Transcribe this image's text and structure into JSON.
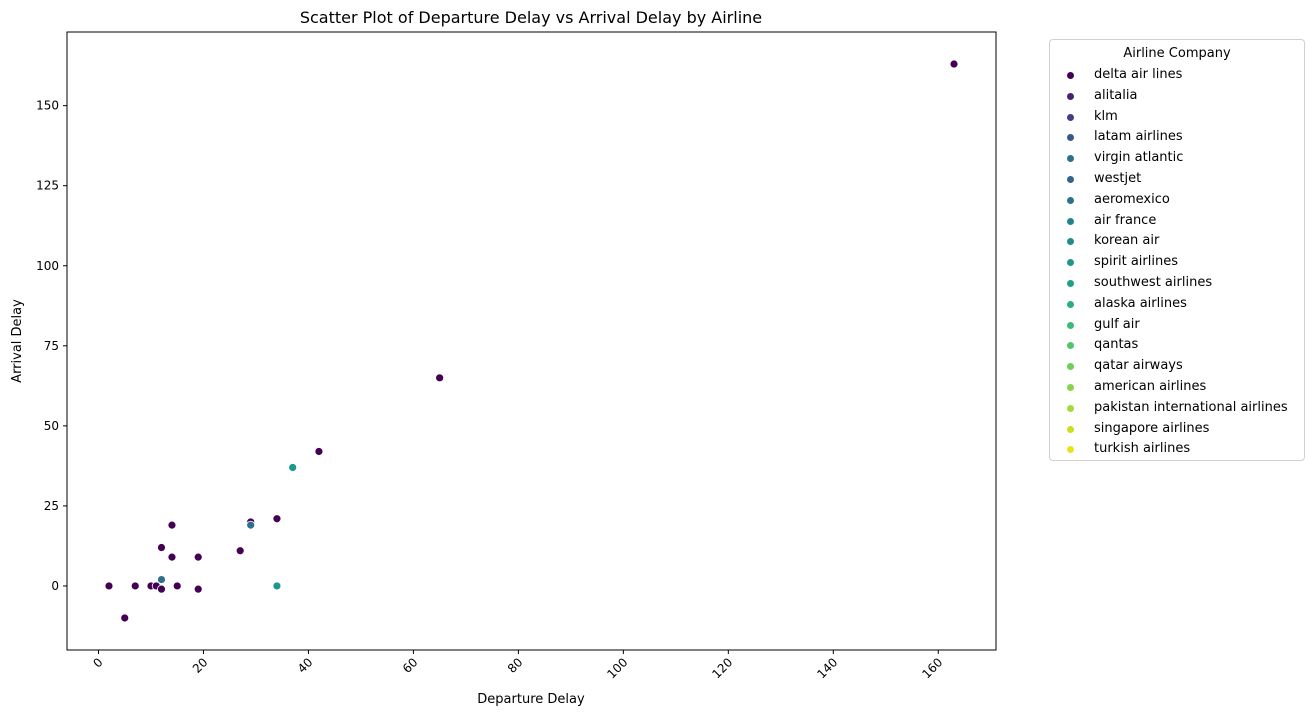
{
  "chart_data": {
    "type": "scatter",
    "title": "Scatter Plot of Departure Delay vs Arrival Delay by Airline",
    "xlabel": "Departure Delay",
    "ylabel": "Arrival Delay",
    "xlim": [
      -6,
      171
    ],
    "ylim": [
      -20,
      173
    ],
    "xticks": [
      0,
      20,
      40,
      60,
      80,
      100,
      120,
      140,
      160
    ],
    "yticks": [
      0,
      25,
      50,
      75,
      100,
      125,
      150
    ],
    "grid": false,
    "legend_title": "Airline Company",
    "legend_position": "outside-right",
    "series": [
      {
        "name": "delta air lines",
        "color": "#440154",
        "points": [
          [
            2,
            0
          ],
          [
            5,
            -10
          ],
          [
            7,
            0
          ],
          [
            10,
            0
          ],
          [
            11,
            0
          ],
          [
            12,
            -1
          ],
          [
            12,
            12
          ],
          [
            14,
            9
          ],
          [
            14,
            19
          ],
          [
            15,
            0
          ],
          [
            19,
            -1
          ],
          [
            19,
            9
          ],
          [
            27,
            11
          ],
          [
            29,
            20
          ],
          [
            34,
            21
          ],
          [
            42,
            42
          ],
          [
            65,
            65
          ],
          [
            163,
            163
          ]
        ]
      },
      {
        "name": "alitalia",
        "color": "#482173",
        "points": []
      },
      {
        "name": "klm",
        "color": "#433e85",
        "points": []
      },
      {
        "name": "latam airlines",
        "color": "#38598c",
        "points": []
      },
      {
        "name": "virgin atlantic",
        "color": "#2d708e",
        "points": [
          [
            29,
            19
          ]
        ]
      },
      {
        "name": "westjet",
        "color": "#32648e",
        "points": []
      },
      {
        "name": "aeromexico",
        "color": "#2c728e",
        "points": [
          [
            12,
            2
          ]
        ]
      },
      {
        "name": "air france",
        "color": "#25838e",
        "points": []
      },
      {
        "name": "korean air",
        "color": "#228c8d",
        "points": []
      },
      {
        "name": "spirit airlines",
        "color": "#1f978b",
        "points": [
          [
            37,
            37
          ],
          [
            34,
            0
          ]
        ]
      },
      {
        "name": "southwest airlines",
        "color": "#1fa188",
        "points": []
      },
      {
        "name": "alaska airlines",
        "color": "#29af7f",
        "points": []
      },
      {
        "name": "gulf air",
        "color": "#3bbb75",
        "points": []
      },
      {
        "name": "qantas",
        "color": "#52c569",
        "points": []
      },
      {
        "name": "qatar airways",
        "color": "#6ece58",
        "points": []
      },
      {
        "name": "american airlines",
        "color": "#86d549",
        "points": []
      },
      {
        "name": "pakistan international airlines",
        "color": "#a5db36",
        "points": []
      },
      {
        "name": "singapore airlines",
        "color": "#c8e020",
        "points": []
      },
      {
        "name": "turkish airlines",
        "color": "#e7e419",
        "points": []
      }
    ]
  }
}
